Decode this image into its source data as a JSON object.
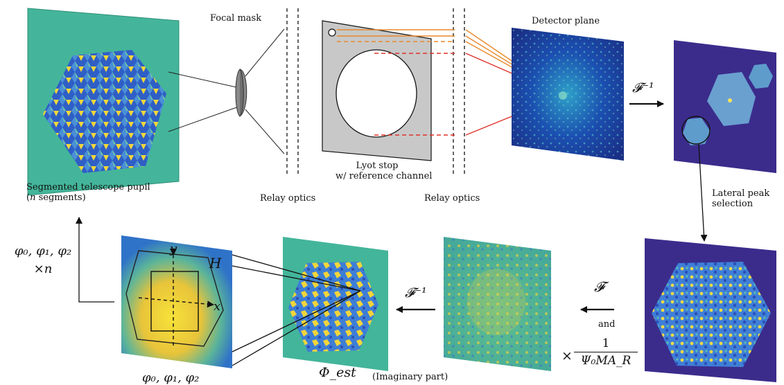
{
  "labels": {
    "focal_mask": "Focal mask",
    "detector_plane": "Detector plane",
    "lyot_stop_line1": "Lyot stop",
    "lyot_stop_line2": "w/ reference channel",
    "pupil_line1": "Segmented telescope pupil",
    "pupil_line2_var": "n",
    "pupil_line2_rest": "segments)",
    "relay_optics_left": "Relay optics",
    "relay_optics_right": "Relay optics",
    "lateral_line1": "Lateral peak",
    "lateral_line2": "selection",
    "and": "and",
    "imaginary_part": "(Imaginary part)"
  },
  "math": {
    "inv_fourier_top": "𝓕⁻¹",
    "inv_fourier_bottom": "𝓕⁻¹",
    "fourier": "𝓕",
    "times": "×",
    "frac_num": "1",
    "frac_den": "Ψ₀MA_R",
    "phi_est": "Φ_est",
    "phases_bottom": "φ₀, φ₁, φ₂",
    "phases_left_line1": "φ₀, φ₁, φ₂",
    "phases_left_line2": "×n",
    "axis_y": "y",
    "axis_x": "x",
    "hex_H": "H"
  },
  "colors": {
    "teal_bg": "#43b59a",
    "navy_bg": "#3b2c8c",
    "laser_orange": "#e8892a",
    "laser_red": "#e0322b",
    "lyot_gray": "#c8c8c8",
    "viridis_yellow": "#f5d832",
    "viridis_blue": "#2c6fd6"
  }
}
